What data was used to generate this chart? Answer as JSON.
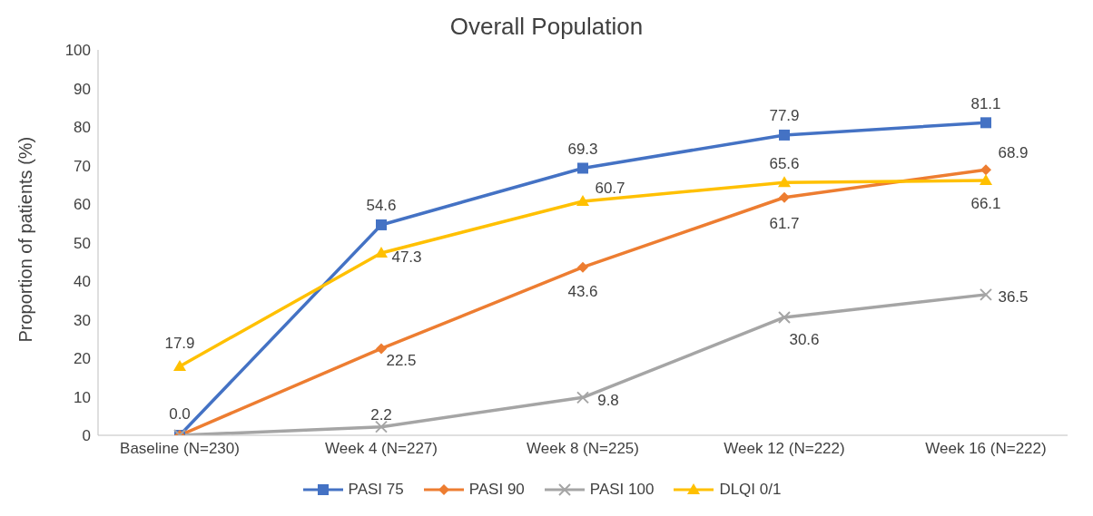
{
  "chart_data": {
    "type": "line",
    "title": "Overall Population",
    "ylabel": "Proportion of patients (%)",
    "categories": [
      "Baseline (N=230)",
      "Week 4 (N=227)",
      "Week 8 (N=225)",
      "Week 12 (N=222)",
      "Week 16 (N=222)"
    ],
    "ylim": [
      0,
      100
    ],
    "yticks": [
      0,
      10,
      20,
      30,
      40,
      50,
      60,
      70,
      80,
      90,
      100
    ],
    "grid": false,
    "legend": "bottom",
    "series": [
      {
        "name": "PASI 75",
        "color": "#4472c4",
        "marker": "square",
        "values": [
          0.0,
          54.6,
          69.3,
          77.9,
          81.1
        ],
        "value_labels": [
          "0.0",
          "54.6",
          "69.3",
          "77.9",
          "81.1"
        ]
      },
      {
        "name": "PASI 90",
        "color": "#ed7d31",
        "marker": "diamond",
        "values": [
          0.0,
          22.5,
          43.6,
          61.7,
          68.9
        ],
        "value_labels": [
          null,
          "22.5",
          "43.6",
          "61.7",
          "68.9"
        ]
      },
      {
        "name": "PASI 100",
        "color": "#a5a5a5",
        "marker": "cross",
        "values": [
          0.0,
          2.2,
          9.8,
          30.6,
          36.5
        ],
        "value_labels": [
          null,
          "2.2",
          "9.8",
          "30.6",
          "36.5"
        ]
      },
      {
        "name": "DLQI 0/1",
        "color": "#ffc000",
        "marker": "triangle",
        "values": [
          17.9,
          47.3,
          60.7,
          65.6,
          66.1
        ],
        "value_labels": [
          "17.9",
          "47.3",
          "60.7",
          "65.6",
          "66.1"
        ]
      }
    ]
  }
}
